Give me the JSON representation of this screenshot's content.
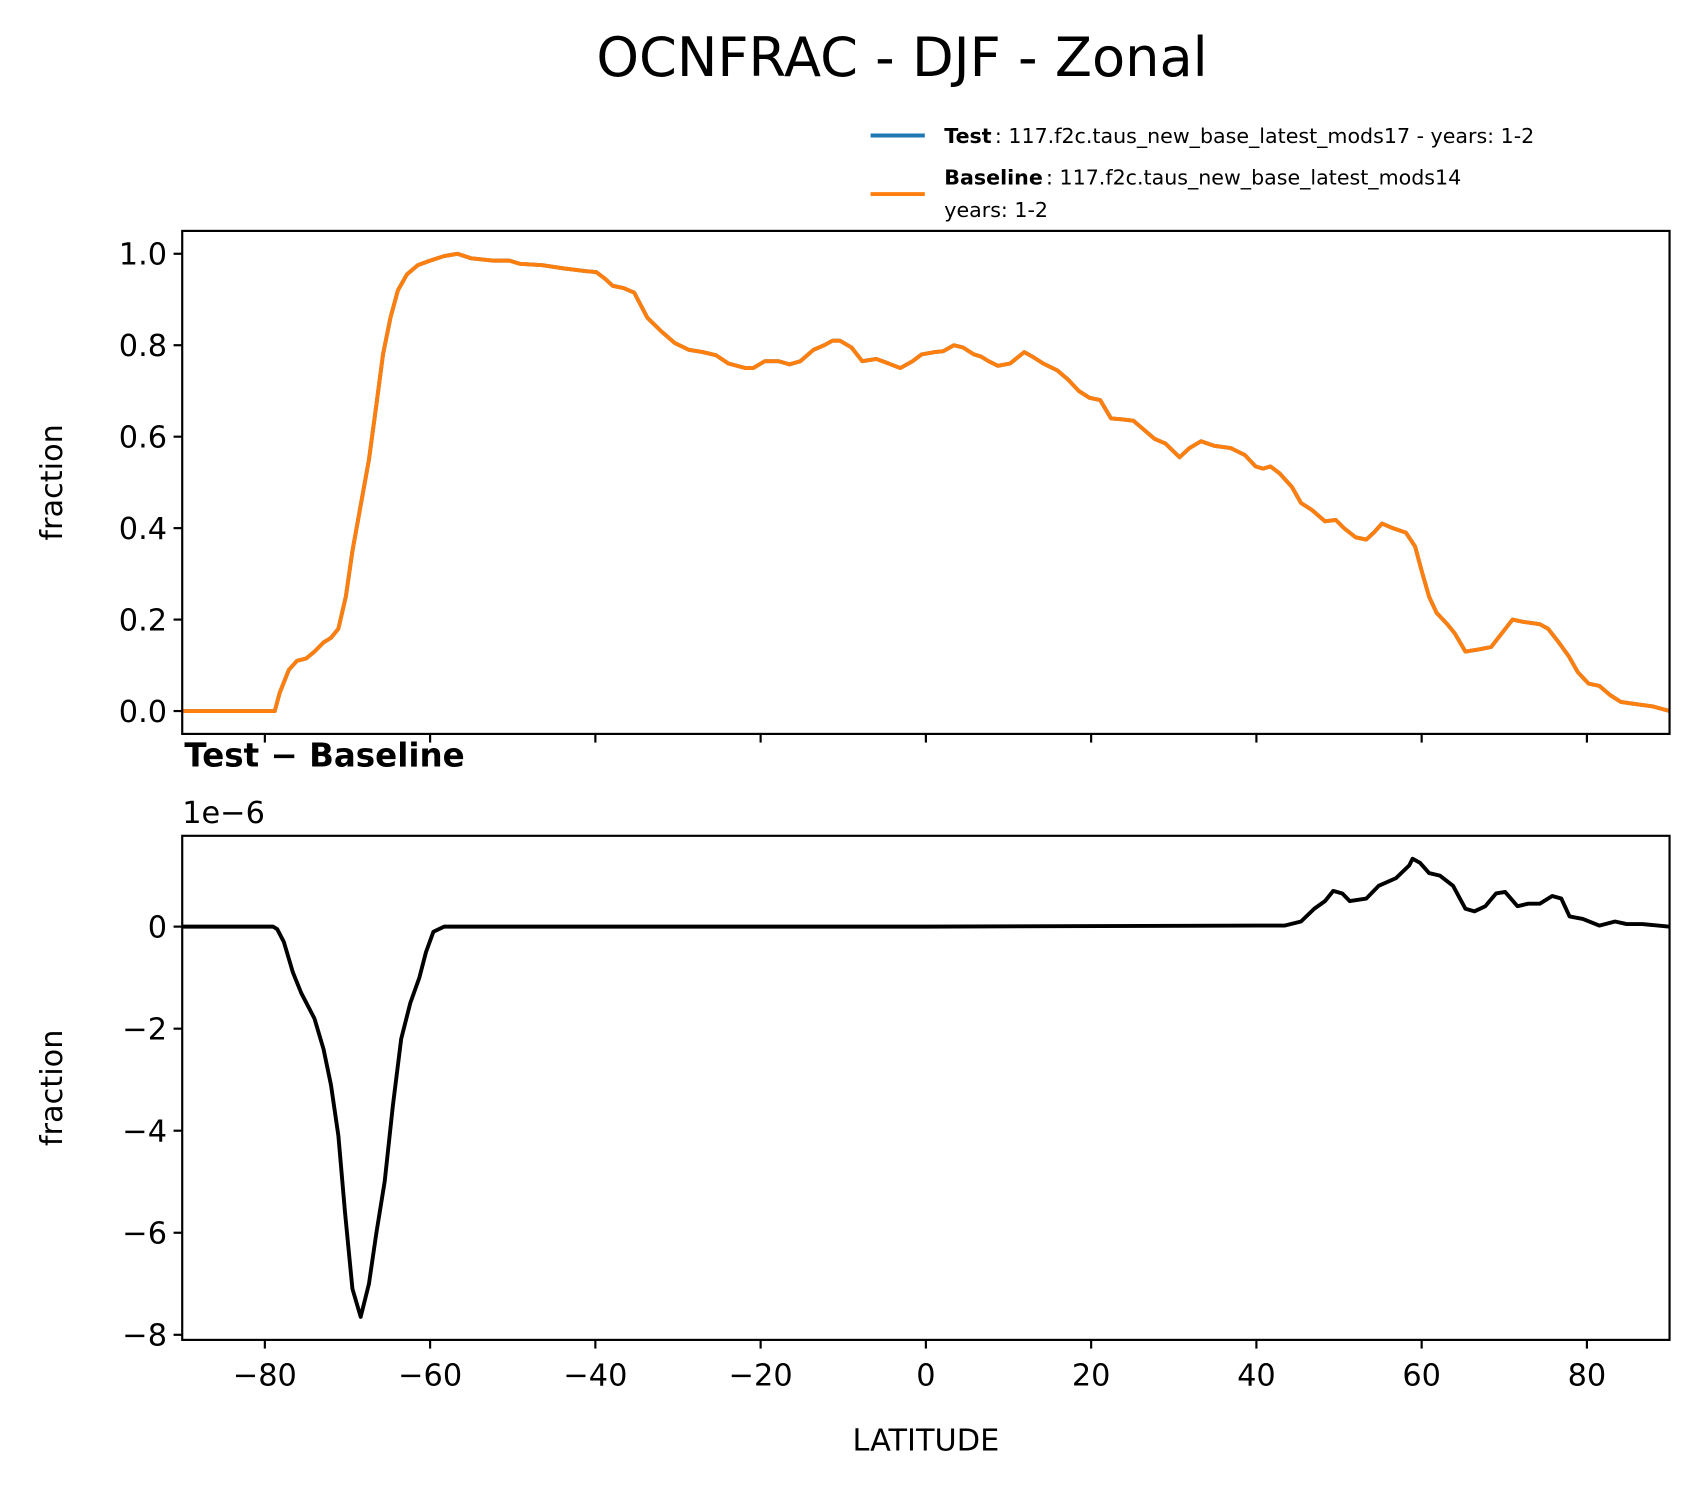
{
  "chart_data": [
    {
      "type": "line",
      "title": "OCNFRAC - DJF - Zonal",
      "ylabel": "fraction",
      "xlim": [
        -90,
        90
      ],
      "xticks": [
        {
          "value": -80,
          "label": "−80"
        },
        {
          "value": -60,
          "label": "−60"
        },
        {
          "value": -40,
          "label": "−40"
        },
        {
          "value": -20,
          "label": "−20"
        },
        0,
        20,
        40,
        60,
        80
      ],
      "ylim": [
        -0.05,
        1.05
      ],
      "yticks": [
        {
          "value": 0,
          "label": "0.0"
        },
        {
          "value": 0.2,
          "label": "0.2"
        },
        {
          "value": 0.4,
          "label": "0.4"
        },
        {
          "value": 0.6,
          "label": "0.6"
        },
        {
          "value": 0.8,
          "label": "0.8"
        },
        {
          "value": 1,
          "label": "1.0"
        }
      ],
      "x": [
        -90,
        -85,
        -80,
        -78.8,
        -78.2,
        -77.1,
        -76.1,
        -75,
        -74,
        -72.9,
        -72,
        -71.1,
        -70.2,
        -69.4,
        -68.4,
        -67.4,
        -66.5,
        -65.7,
        -64.8,
        -63.9,
        -62.8,
        -61.5,
        -60,
        -58.3,
        -56.7,
        -55,
        -52.3,
        -50.4,
        -49.1,
        -46.4,
        -43.8,
        -41.1,
        -39.9,
        -38.8,
        -37.9,
        -36.6,
        -35.3,
        -33.7,
        -32,
        -30.4,
        -28.7,
        -27,
        -25.4,
        -23.9,
        -21.8,
        -20.9,
        -19.5,
        -17.8,
        -16.5,
        -15.2,
        -13.6,
        -12.3,
        -11.3,
        -10.4,
        -9,
        -7.7,
        -6,
        -4.5,
        -3.1,
        -1.6,
        -0.5,
        1.1,
        2.1,
        3.4,
        4.5,
        5.8,
        6.7,
        7.6,
        8.7,
        10.2,
        11.9,
        12.9,
        14.2,
        15.9,
        17.2,
        18.5,
        19.8,
        21.1,
        22.4,
        23.7,
        25.1,
        26.4,
        27.7,
        29,
        30.7,
        31.9,
        33.3,
        34.9,
        36.9,
        38.6,
        39.9,
        40.8,
        41.7,
        42.8,
        44.3,
        45.4,
        46.7,
        48.3,
        49.6,
        50.6,
        52,
        53.3,
        54.2,
        55.2,
        56.5,
        58.1,
        59.2,
        60.1,
        60.9,
        61.8,
        63.1,
        64,
        65.3,
        67,
        68.4,
        69.7,
        71,
        72.3,
        74.3,
        75.3,
        76.6,
        77.8,
        78.9,
        80.2,
        81.5,
        82.8,
        84.1,
        86,
        88,
        90
      ],
      "legend": "upper right",
      "series": [
        {
          "name": "Test",
          "label": [
            ": 117.f2c.taus_new_base_latest_mods17 - years: 1-2"
          ],
          "color": "#1f77b4",
          "values": [
            0,
            0,
            0,
            0,
            0.04,
            0.09,
            0.11,
            0.115,
            0.13,
            0.15,
            0.16,
            0.18,
            0.25,
            0.35,
            0.45,
            0.55,
            0.67,
            0.78,
            0.86,
            0.92,
            0.955,
            0.975,
            0.985,
            0.995,
            1,
            0.99,
            0.985,
            0.985,
            0.978,
            0.975,
            0.968,
            0.962,
            0.96,
            0.945,
            0.93,
            0.925,
            0.915,
            0.86,
            0.83,
            0.805,
            0.79,
            0.785,
            0.778,
            0.76,
            0.75,
            0.75,
            0.765,
            0.765,
            0.758,
            0.765,
            0.79,
            0.8,
            0.81,
            0.81,
            0.795,
            0.765,
            0.77,
            0.76,
            0.75,
            0.765,
            0.78,
            0.785,
            0.787,
            0.8,
            0.795,
            0.78,
            0.775,
            0.765,
            0.755,
            0.76,
            0.785,
            0.775,
            0.76,
            0.745,
            0.725,
            0.7,
            0.685,
            0.68,
            0.64,
            0.638,
            0.635,
            0.615,
            0.595,
            0.585,
            0.555,
            0.575,
            0.59,
            0.58,
            0.575,
            0.56,
            0.535,
            0.53,
            0.535,
            0.52,
            0.49,
            0.455,
            0.44,
            0.415,
            0.418,
            0.4,
            0.38,
            0.375,
            0.39,
            0.41,
            0.4,
            0.39,
            0.36,
            0.3,
            0.25,
            0.215,
            0.19,
            0.17,
            0.13,
            0.135,
            0.14,
            0.17,
            0.2,
            0.195,
            0.19,
            0.18,
            0.15,
            0.12,
            0.085,
            0.06,
            0.055,
            0.035,
            0.02,
            0.015,
            0.01,
            0
          ]
        },
        {
          "name": "Baseline",
          "label": [
            ": 117.f2c.taus_new_base_latest_mods14",
            "years: 1-2"
          ],
          "color": "#ff7f0e",
          "values": [
            0,
            0,
            0,
            0,
            0.04,
            0.09,
            0.11,
            0.115,
            0.13,
            0.15,
            0.16,
            0.18,
            0.25,
            0.35,
            0.45,
            0.55,
            0.67,
            0.78,
            0.86,
            0.92,
            0.955,
            0.975,
            0.985,
            0.995,
            1,
            0.99,
            0.985,
            0.985,
            0.978,
            0.975,
            0.968,
            0.962,
            0.96,
            0.945,
            0.93,
            0.925,
            0.915,
            0.86,
            0.83,
            0.805,
            0.79,
            0.785,
            0.778,
            0.76,
            0.75,
            0.75,
            0.765,
            0.765,
            0.758,
            0.765,
            0.79,
            0.8,
            0.81,
            0.81,
            0.795,
            0.765,
            0.77,
            0.76,
            0.75,
            0.765,
            0.78,
            0.785,
            0.787,
            0.8,
            0.795,
            0.78,
            0.775,
            0.765,
            0.755,
            0.76,
            0.785,
            0.775,
            0.76,
            0.745,
            0.725,
            0.7,
            0.685,
            0.68,
            0.64,
            0.638,
            0.635,
            0.615,
            0.595,
            0.585,
            0.555,
            0.575,
            0.59,
            0.58,
            0.575,
            0.56,
            0.535,
            0.53,
            0.535,
            0.52,
            0.49,
            0.455,
            0.44,
            0.415,
            0.418,
            0.4,
            0.38,
            0.375,
            0.39,
            0.41,
            0.4,
            0.39,
            0.36,
            0.3,
            0.25,
            0.215,
            0.19,
            0.17,
            0.13,
            0.135,
            0.14,
            0.17,
            0.2,
            0.195,
            0.19,
            0.18,
            0.15,
            0.12,
            0.085,
            0.06,
            0.055,
            0.035,
            0.02,
            0.015,
            0.01,
            0
          ]
        }
      ]
    },
    {
      "type": "line",
      "title": "Test − Baseline",
      "offset_text": "1e−6",
      "ylabel": "fraction",
      "xlabel": "LATITUDE",
      "xlim": [
        -90,
        90
      ],
      "xticks": [
        {
          "value": -80,
          "label": "−80"
        },
        {
          "value": -60,
          "label": "−60"
        },
        {
          "value": -40,
          "label": "−40"
        },
        {
          "value": -20,
          "label": "−20"
        },
        0,
        20,
        40,
        60,
        80
      ],
      "ylim": [
        -8.1,
        1.78
      ],
      "yticks": [
        {
          "value": -8,
          "label": "−8"
        },
        {
          "value": -6,
          "label": "−6"
        },
        {
          "value": -4,
          "label": "−4"
        },
        {
          "value": -2,
          "label": "−2"
        },
        0
      ],
      "x": [
        -90,
        -85,
        -79,
        -78.5,
        -77.7,
        -76.6,
        -75.6,
        -74,
        -72.9,
        -72,
        -71.1,
        -70.3,
        -69.4,
        -68.4,
        -67.4,
        -66.5,
        -65.5,
        -64.5,
        -63.5,
        -62.4,
        -61.3,
        -60.5,
        -59.6,
        -58.3,
        0,
        40.1,
        43.4,
        45.4,
        47,
        48.3,
        49.3,
        50.4,
        51.3,
        53.3,
        54.8,
        56.9,
        58.5,
        58.9,
        59.8,
        60.9,
        62.2,
        63.8,
        65.3,
        66.4,
        67.7,
        69,
        70.1,
        71.6,
        72.9,
        74.3,
        75.8,
        76.9,
        77.9,
        79.5,
        81.5,
        83.4,
        84.8,
        86.7,
        88,
        90
      ],
      "series": [
        {
          "color": "#000000",
          "values": [
            0,
            0,
            0,
            -0.05,
            -0.3,
            -0.9,
            -1.3,
            -1.8,
            -2.4,
            -3.1,
            -4.1,
            -5.6,
            -7.1,
            -7.65,
            -7,
            -6,
            -5,
            -3.5,
            -2.2,
            -1.5,
            -1,
            -0.5,
            -0.1,
            0,
            0,
            0.02,
            0.02,
            0.1,
            0.35,
            0.5,
            0.7,
            0.65,
            0.5,
            0.55,
            0.8,
            0.95,
            1.2,
            1.33,
            1.25,
            1.05,
            1,
            0.8,
            0.35,
            0.3,
            0.4,
            0.65,
            0.68,
            0.4,
            0.45,
            0.45,
            0.6,
            0.55,
            0.2,
            0.15,
            0.02,
            0.1,
            0.05,
            0.05,
            0.03,
            0
          ]
        }
      ]
    }
  ]
}
